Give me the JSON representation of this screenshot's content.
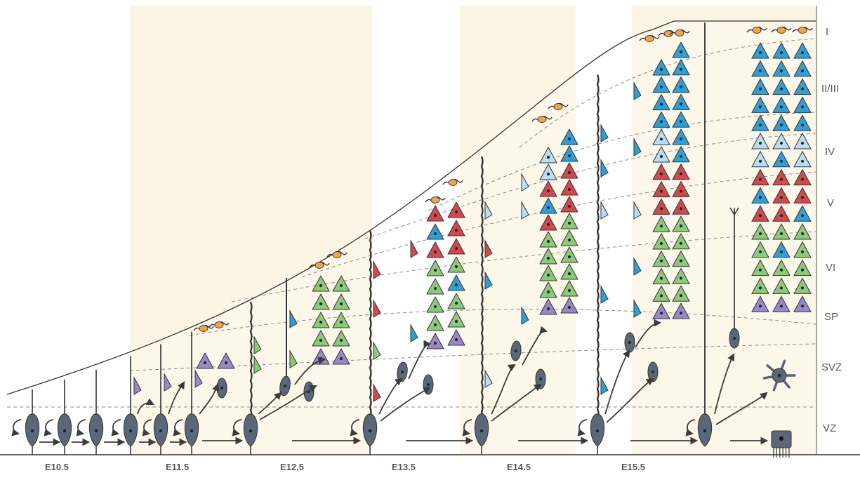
{
  "colors": {
    "background": "#ffffff",
    "band": "#fdf5e3",
    "radial_glia": "#596779",
    "cajal_retzius": "#f2a449",
    "subplate": "#9b86c6",
    "layer_vi": "#8cc97a",
    "layer_v": "#d2484d",
    "layer_iv": "#b9ddf1",
    "layer_ii_iii": "#2f9fd6",
    "outline": "#333333",
    "dashed": "#8a8a8a"
  },
  "layers": [
    {
      "id": "I",
      "label": "I"
    },
    {
      "id": "II-III",
      "label": "II/III"
    },
    {
      "id": "IV",
      "label": "IV"
    },
    {
      "id": "V",
      "label": "V"
    },
    {
      "id": "VI",
      "label": "VI"
    },
    {
      "id": "SP",
      "label": "SP"
    },
    {
      "id": "SVZ",
      "label": "SVZ"
    },
    {
      "id": "VZ",
      "label": "VZ"
    }
  ],
  "stages": [
    {
      "label": "E10.5"
    },
    {
      "label": "E11.5"
    },
    {
      "label": "E12.5"
    },
    {
      "label": "E13.5"
    },
    {
      "label": "E14.5"
    },
    {
      "label": "E15.5"
    }
  ],
  "icons": {
    "radial_glia": "radial-glia-cell-icon",
    "intermediate_progenitor": "intermediate-progenitor-icon",
    "neuron": "pyramidal-neuron-icon",
    "cajal_retzius": "cajal-retzius-cell-icon",
    "astrocyte": "astrocyte-icon",
    "ependymal": "ependymal-cell-icon",
    "arrow": "arrow-icon"
  }
}
